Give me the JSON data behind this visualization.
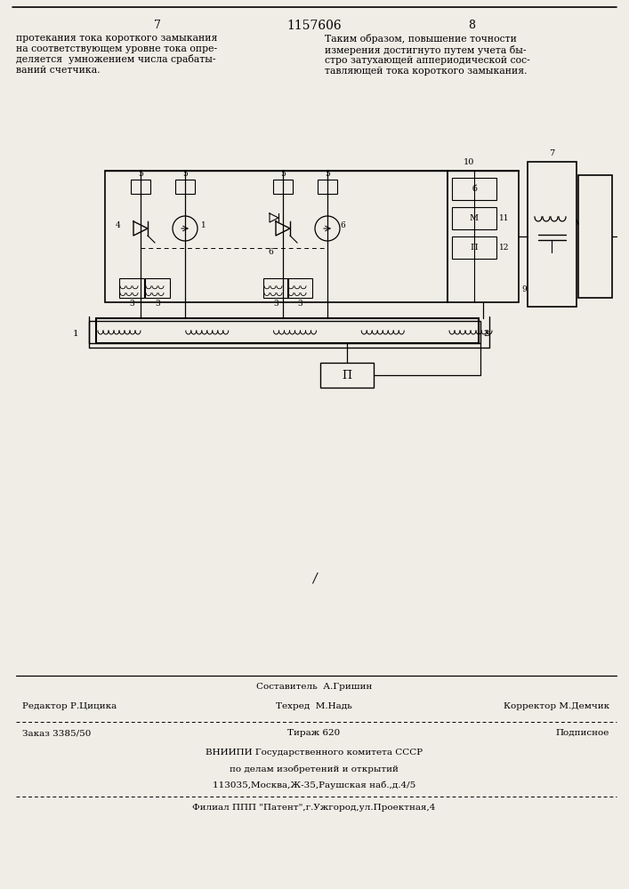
{
  "bg_color": "#f0ede6",
  "page_number_left": "7",
  "page_number_center": "1157606",
  "page_number_right": "8",
  "text_left_col": "протекания тока короткого замыкания\nна соответствующем уровне тока опре-\nделяется  умножением числа срабаты-\nваний счетчика.",
  "text_right_col": "Таким образом, повышение точности\nизмерения достигнуто путем учета бы-\nстро затухающей аппериодической сос-\nтавляющей тока короткого замыкания.",
  "footer_line1_left": "Редактор Р.Цицика",
  "footer_line1_center": "Составитель  А.Гришин",
  "footer_line2_center": "Техред  М.Надь",
  "footer_line1_right": "Корректор М.Демчик",
  "footer_order": "Заказ 3385/50",
  "footer_tirazh": "Тираж 620",
  "footer_podpisnoe": "Подписное",
  "footer_vniipf": "ВНИИПИ Государственного комитета СССР",
  "footer_vniipf2": "по делам изобретений и открытий",
  "footer_address": "113035,Москва,Ж-35,Раушская наб.,д.4/5",
  "footer_filial": "Филиал ППП \"Патент\",г.Ужгород,ул.Проектная,4"
}
